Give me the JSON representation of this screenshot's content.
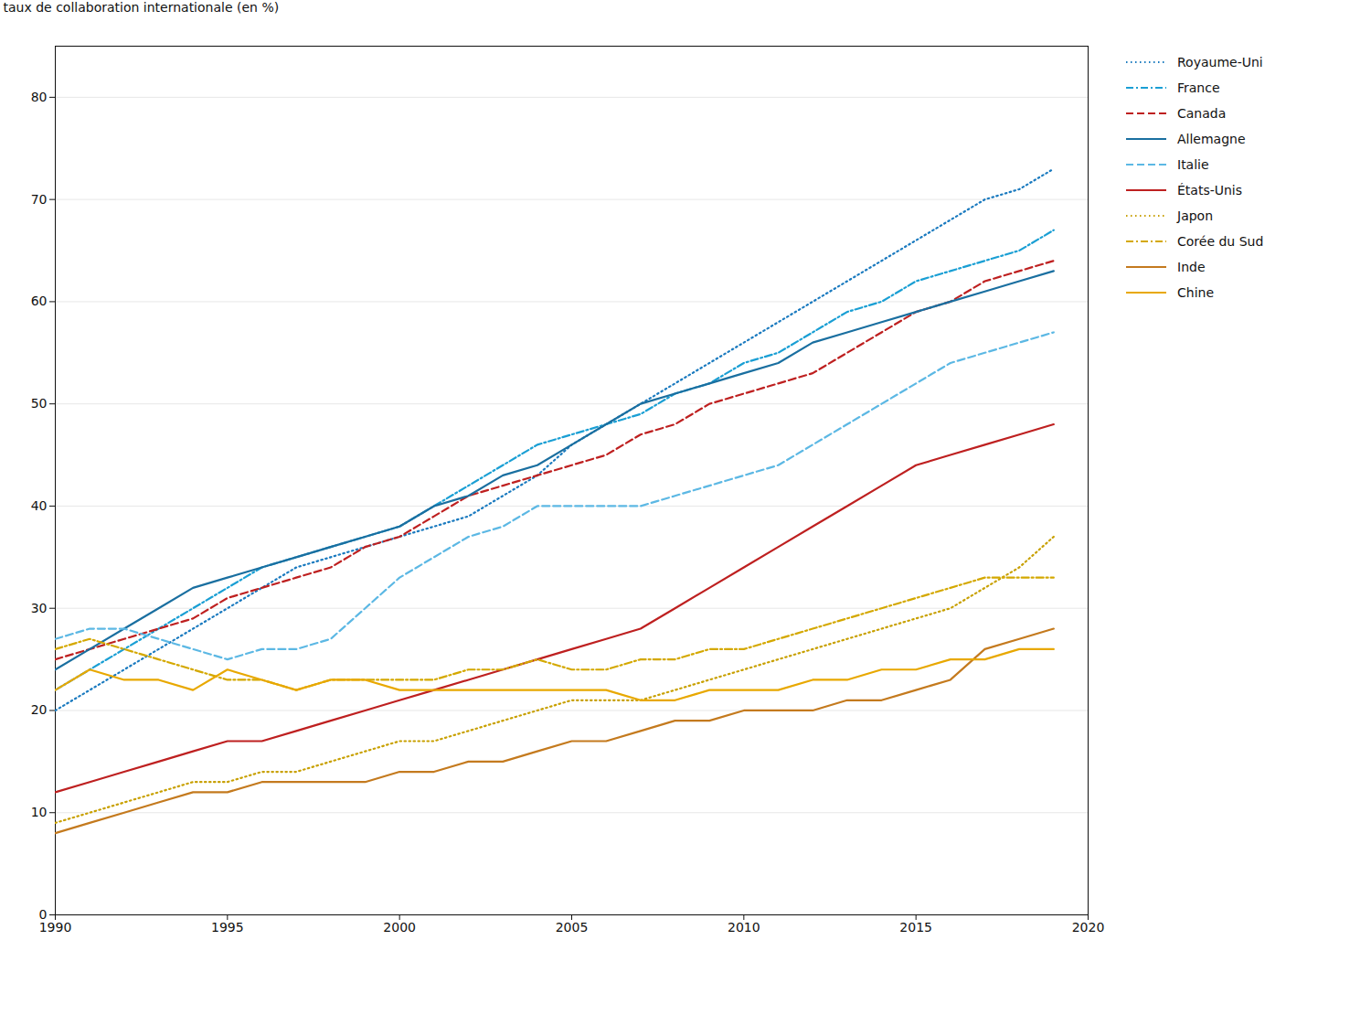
{
  "chart_data": {
    "type": "line",
    "ylabel": "taux de collaboration internationale (en %)",
    "x": [
      1990,
      1991,
      1992,
      1993,
      1994,
      1995,
      1996,
      1997,
      1998,
      1999,
      2000,
      2001,
      2002,
      2003,
      2004,
      2005,
      2006,
      2007,
      2008,
      2009,
      2010,
      2011,
      2012,
      2013,
      2014,
      2015,
      2016,
      2017,
      2018,
      2019
    ],
    "series": [
      {
        "name": "Royaume-Uni",
        "color": "#1a7abf",
        "line_style": "dotted",
        "values": [
          20,
          22,
          24,
          26,
          28,
          30,
          32,
          34,
          35,
          36,
          37,
          38,
          39,
          41,
          43,
          46,
          48,
          50,
          52,
          54,
          56,
          58,
          60,
          62,
          64,
          66,
          68,
          70,
          71,
          73
        ]
      },
      {
        "name": "France",
        "color": "#1a9fd4",
        "line_style": "dashdot",
        "values": [
          22,
          24,
          26,
          28,
          30,
          32,
          34,
          35,
          36,
          37,
          38,
          40,
          42,
          44,
          46,
          47,
          48,
          49,
          51,
          52,
          54,
          55,
          57,
          59,
          60,
          62,
          63,
          64,
          65,
          67
        ]
      },
      {
        "name": "Canada",
        "color": "#be2020",
        "line_style": "dashed",
        "values": [
          25,
          26,
          27,
          28,
          29,
          31,
          32,
          33,
          34,
          36,
          37,
          39,
          41,
          42,
          43,
          44,
          45,
          47,
          48,
          50,
          51,
          52,
          53,
          55,
          57,
          59,
          60,
          62,
          63,
          64
        ]
      },
      {
        "name": "Allemagne",
        "color": "#1a6fa0",
        "line_style": "solid",
        "values": [
          24,
          26,
          28,
          30,
          32,
          33,
          34,
          35,
          36,
          37,
          38,
          40,
          41,
          43,
          44,
          46,
          48,
          50,
          51,
          52,
          53,
          54,
          56,
          57,
          58,
          59,
          60,
          61,
          62,
          63
        ]
      },
      {
        "name": "Italie",
        "color": "#5cb8e4",
        "line_style": "dashed",
        "values": [
          27,
          28,
          28,
          27,
          26,
          25,
          26,
          26,
          27,
          30,
          33,
          35,
          37,
          38,
          40,
          40,
          40,
          40,
          41,
          42,
          43,
          44,
          46,
          48,
          50,
          52,
          54,
          55,
          56,
          57
        ]
      },
      {
        "name": "États-Unis",
        "color": "#be2020",
        "line_style": "solid",
        "values": [
          12,
          13,
          14,
          15,
          16,
          17,
          17,
          18,
          19,
          20,
          21,
          22,
          23,
          24,
          25,
          26,
          27,
          28,
          30,
          32,
          34,
          36,
          38,
          40,
          42,
          44,
          45,
          46,
          47,
          48
        ]
      },
      {
        "name": "Japon",
        "color": "#c8a000",
        "line_style": "dotted",
        "values": [
          9,
          10,
          11,
          12,
          13,
          13,
          14,
          14,
          15,
          16,
          17,
          17,
          18,
          19,
          20,
          21,
          21,
          21,
          22,
          23,
          24,
          25,
          26,
          27,
          28,
          29,
          30,
          32,
          34,
          37
        ]
      },
      {
        "name": "Corée du Sud",
        "color": "#d4a800",
        "line_style": "dashdot",
        "values": [
          26,
          27,
          26,
          25,
          24,
          23,
          23,
          22,
          23,
          23,
          23,
          23,
          24,
          24,
          25,
          24,
          24,
          25,
          25,
          26,
          26,
          27,
          28,
          29,
          30,
          31,
          32,
          33,
          33,
          33
        ]
      },
      {
        "name": "Inde",
        "color": "#c47a1e",
        "line_style": "solid",
        "values": [
          8,
          9,
          10,
          11,
          12,
          12,
          13,
          13,
          13,
          13,
          14,
          14,
          15,
          15,
          16,
          17,
          17,
          18,
          19,
          19,
          20,
          20,
          20,
          21,
          21,
          22,
          23,
          26,
          27,
          28
        ]
      },
      {
        "name": "Chine",
        "color": "#e8a800",
        "line_style": "solid",
        "values": [
          22,
          24,
          23,
          23,
          22,
          24,
          23,
          22,
          23,
          23,
          22,
          22,
          22,
          22,
          22,
          22,
          22,
          21,
          21,
          22,
          22,
          22,
          23,
          23,
          24,
          24,
          25,
          25,
          26,
          26
        ]
      }
    ],
    "xlim": [
      1990,
      2020
    ],
    "xticks": [
      1990,
      1995,
      2000,
      2005,
      2010,
      2015,
      2020
    ],
    "ylim": [
      0,
      85
    ],
    "yticks": [
      0,
      10,
      20,
      30,
      40,
      50,
      60,
      70,
      80
    ],
    "grid": true,
    "legend": "right"
  }
}
